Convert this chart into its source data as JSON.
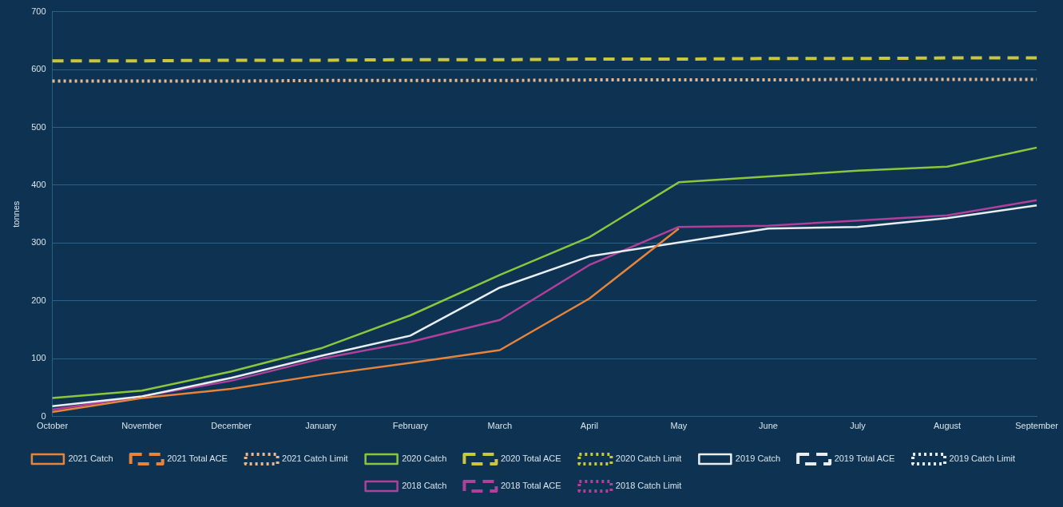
{
  "chart_data": {
    "type": "line",
    "ylabel": "tonnes",
    "categories": [
      "October",
      "November",
      "December",
      "January",
      "February",
      "March",
      "April",
      "May",
      "June",
      "July",
      "August",
      "September"
    ],
    "ylim": [
      0,
      700
    ],
    "yticks": [
      0,
      100,
      200,
      300,
      400,
      500,
      600,
      700
    ],
    "grid": "y",
    "legend": "bottom",
    "marker": "none",
    "series": [
      {
        "name": "2021 Catch",
        "color": "#e8843a",
        "line_style": "solid",
        "values": [
          8,
          32,
          48,
          72,
          93,
          115,
          204,
          325,
          null,
          null,
          null,
          null
        ]
      },
      {
        "name": "2021 Total ACE",
        "color": "#e8843a",
        "line_style": "dashed",
        "values": [
          null,
          null,
          null,
          null,
          null,
          null,
          null,
          null,
          null,
          null,
          null,
          null
        ]
      },
      {
        "name": "2021 Catch Limit",
        "color": "#e8b890",
        "line_style": "dotted",
        "values": [
          580,
          580,
          580,
          581,
          581,
          581,
          582,
          582,
          582,
          583,
          583,
          583
        ]
      },
      {
        "name": "2020 Catch",
        "color": "#8cc63f",
        "line_style": "solid",
        "values": [
          32,
          45,
          78,
          118,
          175,
          245,
          310,
          405,
          415,
          425,
          432,
          465
        ]
      },
      {
        "name": "2020 Total ACE",
        "color": "#c8c83a",
        "line_style": "dashed",
        "values": [
          615,
          615,
          616,
          616,
          617,
          617,
          618,
          618,
          619,
          619,
          620,
          620
        ]
      },
      {
        "name": "2020 Catch Limit",
        "color": "#c8c83a",
        "line_style": "dotted",
        "values": [
          null,
          null,
          null,
          null,
          null,
          null,
          null,
          null,
          null,
          null,
          null,
          null
        ]
      },
      {
        "name": "2019 Catch",
        "color": "#e8eef2",
        "line_style": "solid",
        "values": [
          18,
          35,
          67,
          105,
          140,
          223,
          277,
          301,
          325,
          328,
          343,
          365
        ]
      },
      {
        "name": "2019 Total ACE",
        "color": "#e8eef2",
        "line_style": "dashed",
        "values": [
          null,
          null,
          null,
          null,
          null,
          null,
          null,
          null,
          null,
          null,
          null,
          null
        ]
      },
      {
        "name": "2019 Catch Limit",
        "color": "#e8eef2",
        "line_style": "dotted",
        "values": [
          null,
          null,
          null,
          null,
          null,
          null,
          null,
          null,
          null,
          null,
          null,
          null
        ]
      },
      {
        "name": "2018 Catch",
        "color": "#b0409a",
        "line_style": "solid",
        "values": [
          12,
          35,
          62,
          100,
          129,
          167,
          262,
          328,
          330,
          339,
          348,
          374
        ]
      },
      {
        "name": "2018 Total ACE",
        "color": "#b0409a",
        "line_style": "dashed",
        "values": [
          null,
          null,
          null,
          null,
          null,
          null,
          null,
          null,
          null,
          null,
          null,
          null
        ]
      },
      {
        "name": "2018 Catch Limit",
        "color": "#b0409a",
        "line_style": "dotted",
        "values": [
          null,
          null,
          null,
          null,
          null,
          null,
          null,
          null,
          null,
          null,
          null,
          null
        ]
      }
    ]
  }
}
